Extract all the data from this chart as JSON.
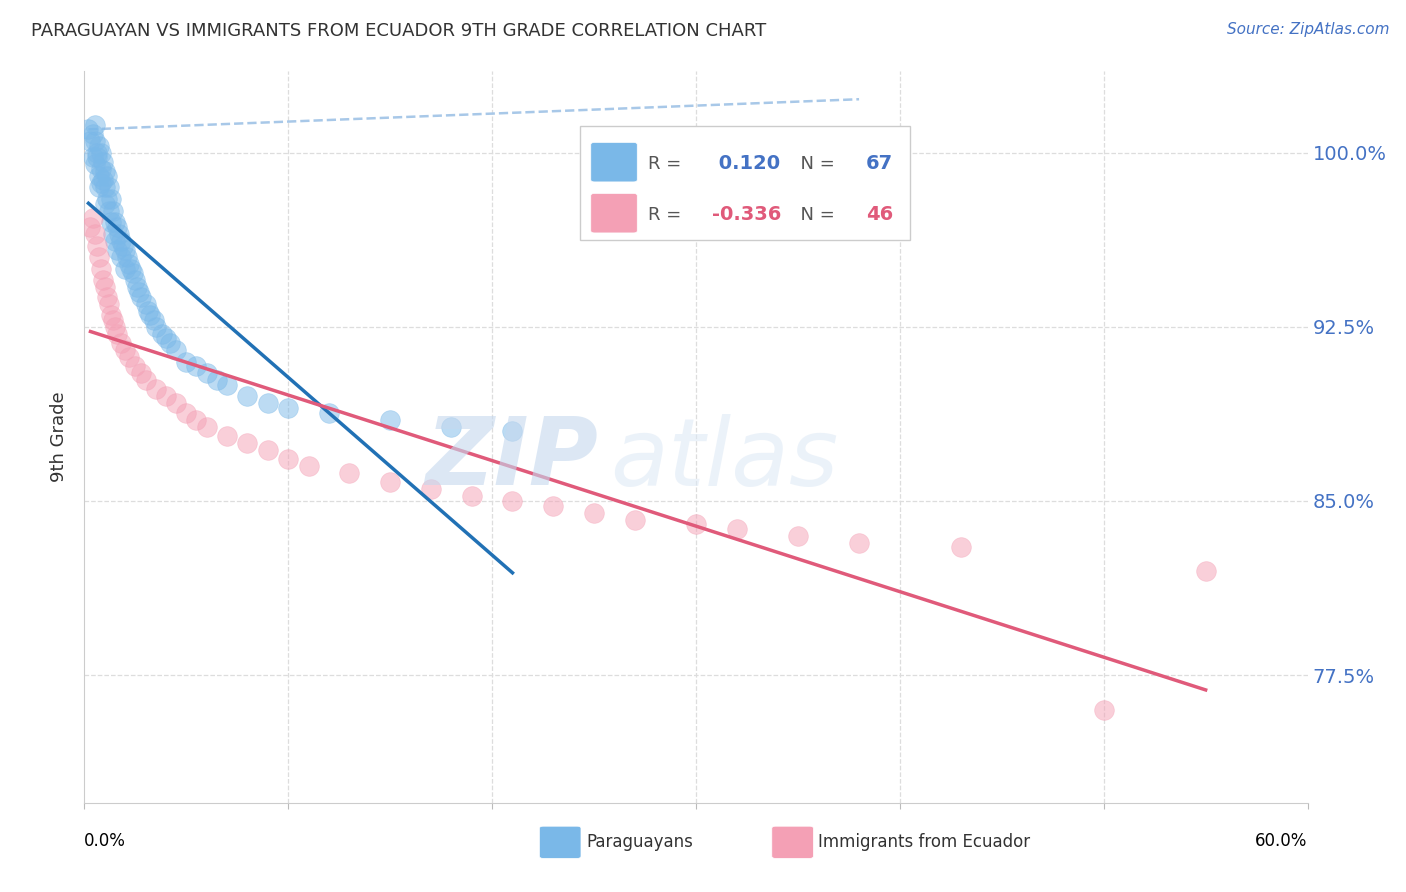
{
  "title": "PARAGUAYAN VS IMMIGRANTS FROM ECUADOR 9TH GRADE CORRELATION CHART",
  "source": "Source: ZipAtlas.com",
  "ylabel": "9th Grade",
  "ytick_labels": [
    "100.0%",
    "92.5%",
    "85.0%",
    "77.5%"
  ],
  "ytick_values": [
    1.0,
    0.925,
    0.85,
    0.775
  ],
  "xlim": [
    0.0,
    0.6
  ],
  "ylim": [
    0.72,
    1.035
  ],
  "paraguayan_R": 0.12,
  "paraguayan_N": 67,
  "ecuador_R": -0.336,
  "ecuador_N": 46,
  "blue_color": "#7ab8e8",
  "pink_color": "#f4a0b5",
  "blue_line_color": "#2171b5",
  "pink_line_color": "#e05a7a",
  "blue_dashed_color": "#a8c8e8",
  "paraguayan_x": [
    0.002,
    0.003,
    0.004,
    0.004,
    0.005,
    0.005,
    0.005,
    0.006,
    0.006,
    0.007,
    0.007,
    0.007,
    0.008,
    0.008,
    0.008,
    0.009,
    0.009,
    0.01,
    0.01,
    0.01,
    0.011,
    0.011,
    0.012,
    0.012,
    0.013,
    0.013,
    0.014,
    0.014,
    0.015,
    0.015,
    0.016,
    0.016,
    0.017,
    0.018,
    0.018,
    0.019,
    0.02,
    0.02,
    0.021,
    0.022,
    0.023,
    0.024,
    0.025,
    0.026,
    0.027,
    0.028,
    0.03,
    0.031,
    0.032,
    0.034,
    0.035,
    0.038,
    0.04,
    0.042,
    0.045,
    0.05,
    0.055,
    0.06,
    0.065,
    0.07,
    0.08,
    0.09,
    0.1,
    0.12,
    0.15,
    0.18,
    0.21
  ],
  "paraguayan_y": [
    1.01,
    1.005,
    1.008,
    0.998,
    1.012,
    1.005,
    0.995,
    1.0,
    0.998,
    1.003,
    0.99,
    0.985,
    1.0,
    0.993,
    0.987,
    0.996,
    0.988,
    0.992,
    0.985,
    0.978,
    0.99,
    0.98,
    0.985,
    0.975,
    0.98,
    0.97,
    0.975,
    0.965,
    0.97,
    0.962,
    0.968,
    0.958,
    0.965,
    0.962,
    0.955,
    0.96,
    0.958,
    0.95,
    0.955,
    0.952,
    0.95,
    0.948,
    0.945,
    0.942,
    0.94,
    0.938,
    0.935,
    0.932,
    0.93,
    0.928,
    0.925,
    0.922,
    0.92,
    0.918,
    0.915,
    0.91,
    0.908,
    0.905,
    0.902,
    0.9,
    0.895,
    0.892,
    0.89,
    0.888,
    0.885,
    0.882,
    0.88
  ],
  "ecuador_x": [
    0.003,
    0.004,
    0.005,
    0.006,
    0.007,
    0.008,
    0.009,
    0.01,
    0.011,
    0.012,
    0.013,
    0.014,
    0.015,
    0.016,
    0.018,
    0.02,
    0.022,
    0.025,
    0.028,
    0.03,
    0.035,
    0.04,
    0.045,
    0.05,
    0.055,
    0.06,
    0.07,
    0.08,
    0.09,
    0.1,
    0.11,
    0.13,
    0.15,
    0.17,
    0.19,
    0.21,
    0.23,
    0.25,
    0.27,
    0.3,
    0.32,
    0.35,
    0.38,
    0.43,
    0.5,
    0.55
  ],
  "ecuador_y": [
    0.968,
    0.972,
    0.965,
    0.96,
    0.955,
    0.95,
    0.945,
    0.942,
    0.938,
    0.935,
    0.93,
    0.928,
    0.925,
    0.922,
    0.918,
    0.915,
    0.912,
    0.908,
    0.905,
    0.902,
    0.898,
    0.895,
    0.892,
    0.888,
    0.885,
    0.882,
    0.878,
    0.875,
    0.872,
    0.868,
    0.865,
    0.862,
    0.858,
    0.855,
    0.852,
    0.85,
    0.848,
    0.845,
    0.842,
    0.84,
    0.838,
    0.835,
    0.832,
    0.83,
    0.76,
    0.82
  ],
  "watermark_zip": "ZIP",
  "watermark_atlas": "atlas"
}
